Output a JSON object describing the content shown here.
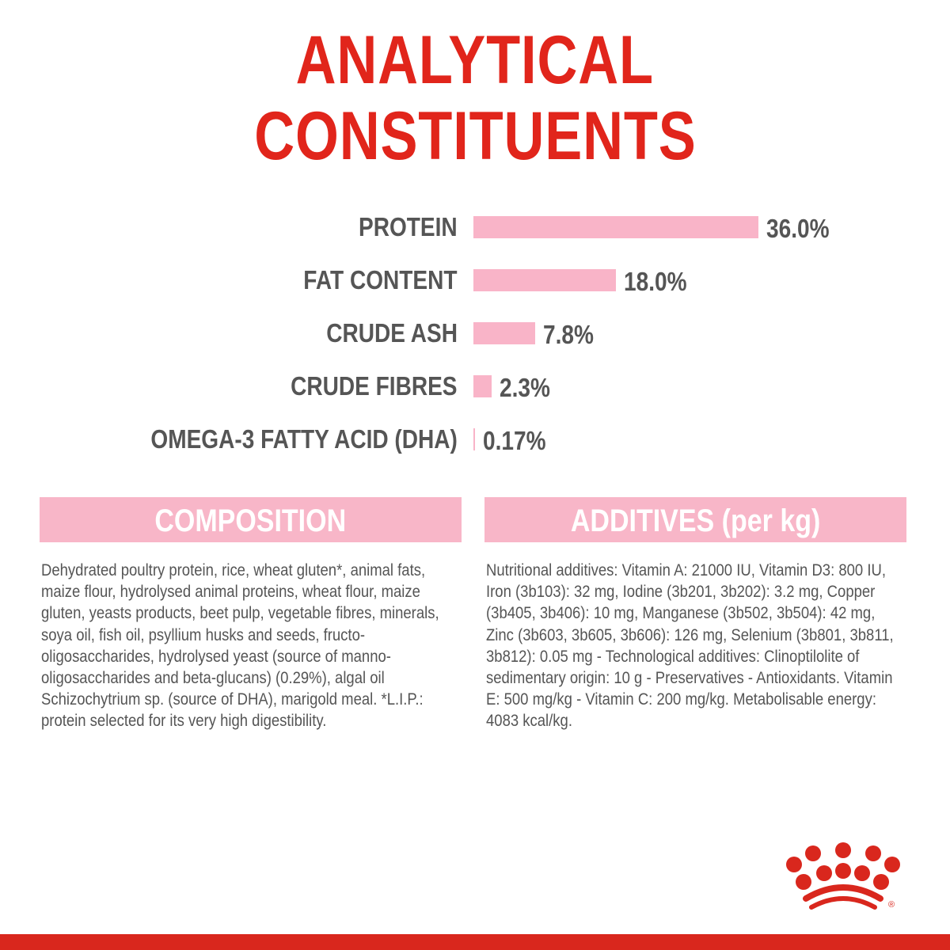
{
  "title": {
    "line1": "ANALYTICAL",
    "line2": "CONSTITUENTS"
  },
  "colors": {
    "title": "#e1251b",
    "bar": "#f9b4c8",
    "header_bg": "#f8b6c8",
    "text": "#555555",
    "brand_red": "#d9271d"
  },
  "chart_data": {
    "type": "bar",
    "orientation": "horizontal",
    "categories": [
      "PROTEIN",
      "FAT CONTENT",
      "CRUDE ASH",
      "CRUDE FIBRES",
      "OMEGA-3 FATTY ACID (DHA)"
    ],
    "values": [
      36.0,
      18.0,
      7.8,
      2.3,
      0.17
    ],
    "data_labels": [
      "36.0%",
      "18.0%",
      "7.8%",
      "2.3%",
      "0.17%"
    ],
    "unit": "%",
    "grid": false
  },
  "composition": {
    "heading": "COMPOSITION",
    "text": "Dehydrated poultry protein, rice, wheat gluten*, animal fats, maize flour, hydrolysed animal proteins, wheat flour, maize gluten, yeasts products, beet pulp, vegetable fibres, minerals, soya oil, fish oil, psyllium husks and seeds, fructo-oligosaccharides, hydrolysed yeast (source of manno-oligosaccharides and beta-glucans) (0.29%), algal oil Schizochytrium sp. (source of DHA), marigold meal. *L.I.P.: protein selected for its very high digestibility."
  },
  "additives": {
    "heading": "ADDITIVES (per kg)",
    "text": "Nutritional additives: Vitamin A: 21000 IU, Vitamin D3: 800 IU, Iron (3b103): 32 mg, Iodine (3b201, 3b202): 3.2 mg, Copper (3b405, 3b406): 10 mg, Manganese (3b502, 3b504): 42 mg, Zinc (3b603, 3b605, 3b606): 126 mg, Selenium (3b801, 3b811, 3b812): 0.05 mg - Technological additives: Clinoptilolite of sedimentary origin: 10 g - Preservatives - Antioxidants. Vitamin E: 500 mg/kg - Vitamin C: 200 mg/kg. Metabolisable energy: 4083 kcal/kg."
  },
  "logo": {
    "icon": "royal-canin-crown-logo",
    "mark": "®"
  }
}
